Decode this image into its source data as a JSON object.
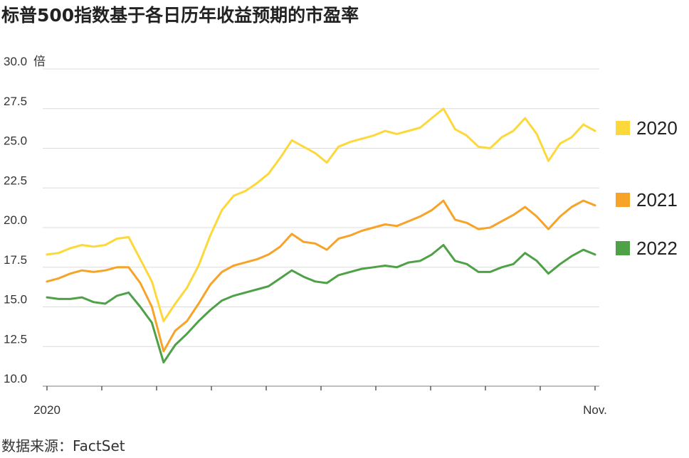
{
  "title": "标普500指数基于各日历年收益预期的市盈率",
  "source": "数据来源：FactSet",
  "chart_data": {
    "type": "line",
    "y_unit": "倍",
    "y_ticks": [
      "30.0",
      "27.5",
      "25.0",
      "22.5",
      "20.0",
      "17.5",
      "15.0",
      "12.5",
      "10.0"
    ],
    "ylim": [
      10,
      30
    ],
    "x_tick_labels": {
      "start": "2020",
      "end": "Nov."
    },
    "grid": true,
    "legend_position": "right",
    "x_days": [
      0,
      7,
      14,
      21,
      28,
      35,
      42,
      49,
      56,
      63,
      70,
      77,
      84,
      91,
      98,
      105,
      112,
      119,
      126,
      133,
      140,
      147,
      154,
      161,
      168,
      175,
      182,
      189,
      196,
      203,
      210,
      217,
      224,
      231,
      238,
      245,
      252,
      259,
      266,
      273,
      280,
      287,
      294,
      301,
      308,
      315,
      322,
      329
    ],
    "series": [
      {
        "name": "2020",
        "color": "#fdd83a",
        "values": [
          18.3,
          18.4,
          18.7,
          18.9,
          18.8,
          18.9,
          19.3,
          19.4,
          18.0,
          16.6,
          14.1,
          15.2,
          16.2,
          17.6,
          19.5,
          21.1,
          22.0,
          22.3,
          22.8,
          23.4,
          24.4,
          25.5,
          25.1,
          24.7,
          24.1,
          25.1,
          25.4,
          25.6,
          25.8,
          26.1,
          25.9,
          26.1,
          26.3,
          26.9,
          27.5,
          26.2,
          25.8,
          25.1,
          25.0,
          25.7,
          26.1,
          26.9,
          25.9,
          24.2,
          25.3,
          25.7,
          26.5,
          26.1
        ]
      },
      {
        "name": "2021",
        "color": "#f7a328",
        "values": [
          16.6,
          16.8,
          17.1,
          17.3,
          17.2,
          17.3,
          17.5,
          17.5,
          16.5,
          15.0,
          12.2,
          13.5,
          14.1,
          15.2,
          16.4,
          17.2,
          17.6,
          17.8,
          18.0,
          18.3,
          18.8,
          19.6,
          19.1,
          19.0,
          18.6,
          19.3,
          19.5,
          19.8,
          20.0,
          20.2,
          20.1,
          20.4,
          20.7,
          21.1,
          21.7,
          20.5,
          20.3,
          19.9,
          20.0,
          20.4,
          20.8,
          21.3,
          20.7,
          19.9,
          20.7,
          21.3,
          21.7,
          21.4
        ]
      },
      {
        "name": "2022",
        "color": "#4ea146",
        "values": [
          15.6,
          15.5,
          15.5,
          15.6,
          15.3,
          15.2,
          15.7,
          15.9,
          15.0,
          14.0,
          11.5,
          12.6,
          13.3,
          14.1,
          14.8,
          15.4,
          15.7,
          15.9,
          16.1,
          16.3,
          16.8,
          17.3,
          16.9,
          16.6,
          16.5,
          17.0,
          17.2,
          17.4,
          17.5,
          17.6,
          17.5,
          17.8,
          17.9,
          18.3,
          18.9,
          17.9,
          17.7,
          17.2,
          17.2,
          17.5,
          17.7,
          18.4,
          17.9,
          17.1,
          17.7,
          18.2,
          18.6,
          18.3
        ]
      }
    ]
  }
}
